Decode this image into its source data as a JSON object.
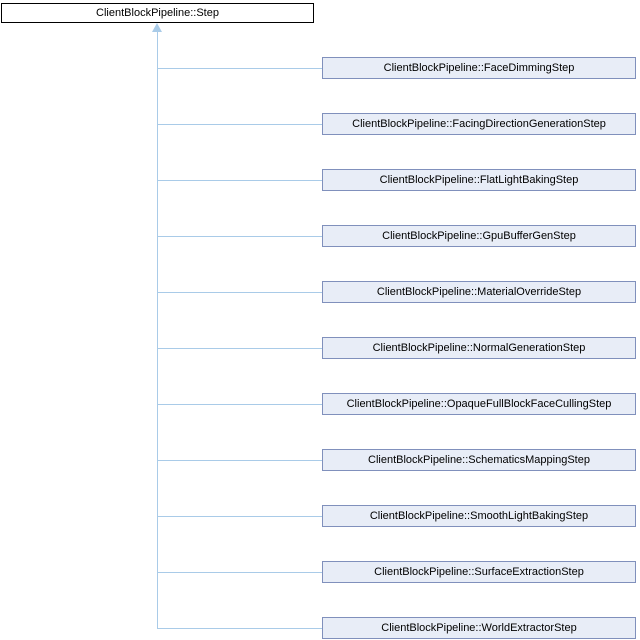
{
  "diagram": {
    "base": "ClientBlockPipeline::Step",
    "derived": [
      "ClientBlockPipeline::FaceDimmingStep",
      "ClientBlockPipeline::FacingDirectionGenerationStep",
      "ClientBlockPipeline::FlatLightBakingStep",
      "ClientBlockPipeline::GpuBufferGenStep",
      "ClientBlockPipeline::MaterialOverrideStep",
      "ClientBlockPipeline::NormalGenerationStep",
      "ClientBlockPipeline::OpaqueFullBlockFaceCullingStep",
      "ClientBlockPipeline::SchematicsMappingStep",
      "ClientBlockPipeline::SmoothLightBakingStep",
      "ClientBlockPipeline::SurfaceExtractionStep",
      "ClientBlockPipeline::WorldExtractorStep"
    ],
    "colors": {
      "background": "#FFFFFF",
      "base_fill": "#FFFFFF",
      "base_border": "#000000",
      "node_fill": "#E8EDF7",
      "node_border": "#8090BC",
      "edge": "#A9CBE8",
      "text": "#000000"
    }
  }
}
